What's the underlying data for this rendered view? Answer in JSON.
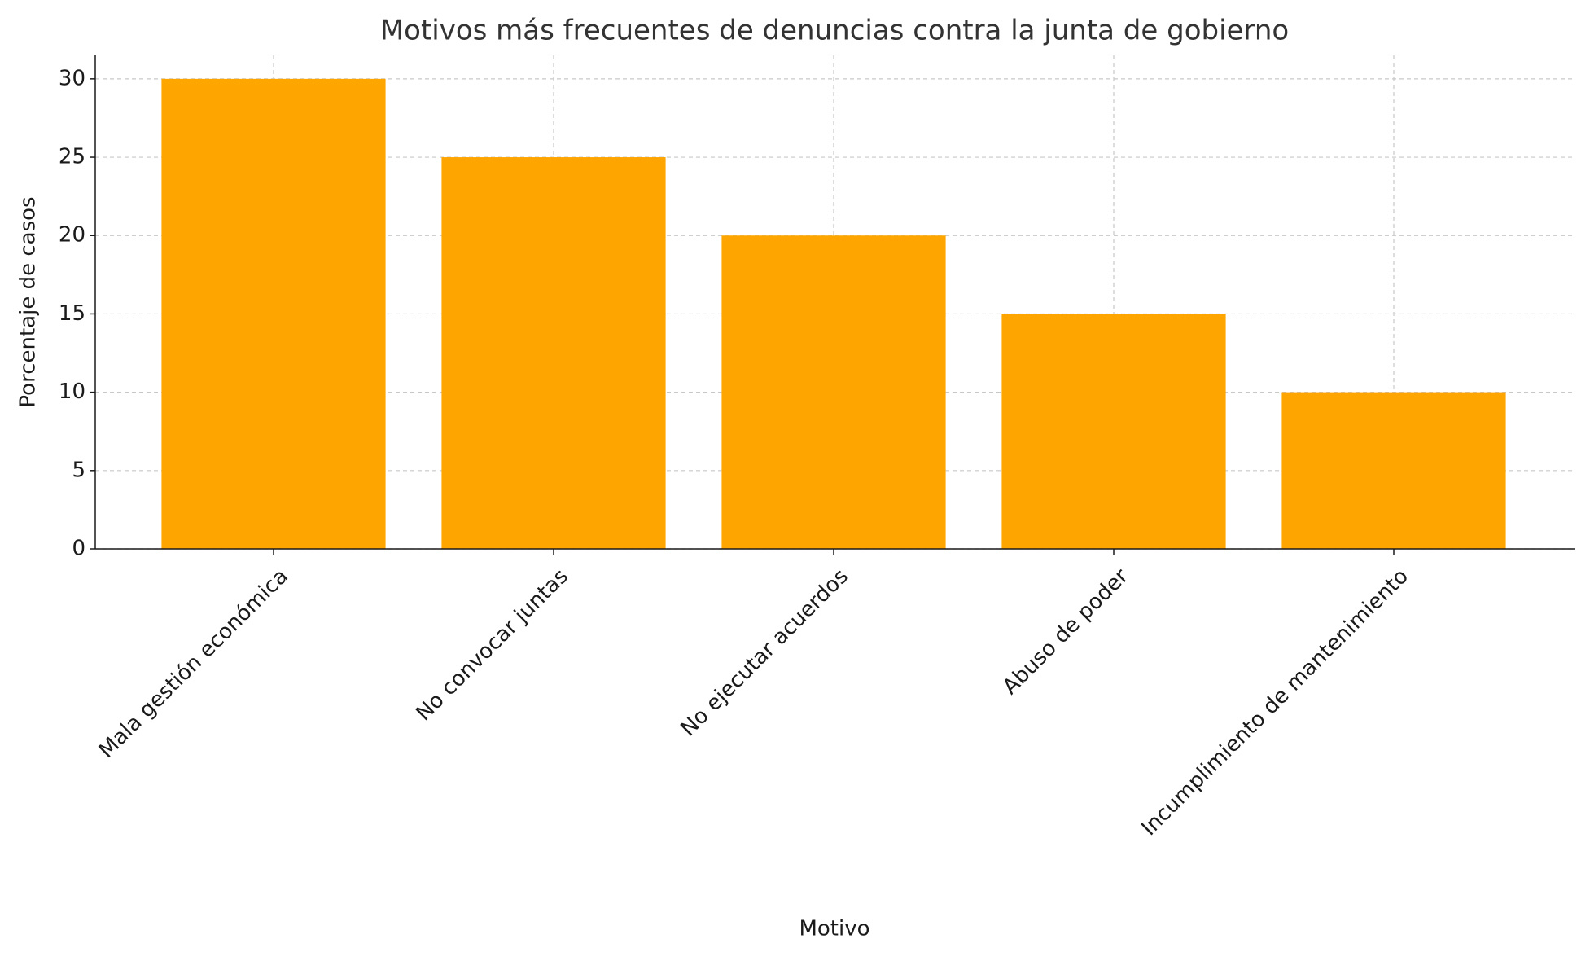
{
  "chart_data": {
    "type": "bar",
    "title": "Motivos más frecuentes de denuncias contra la junta de gobierno",
    "x_label": "Motivo",
    "y_label": "Porcentaje de casos",
    "categories": [
      "Mala gestión económica",
      "No convocar juntas",
      "No ejecutar acuerdos",
      "Abuso de poder",
      "Incumplimiento de mantenimiento"
    ],
    "values": [
      30,
      25,
      20,
      15,
      10
    ],
    "color": "#ffa500",
    "ylim": [
      0,
      31.5
    ],
    "yticks": [
      0,
      5,
      10,
      15,
      20,
      25,
      30
    ],
    "grid": true
  }
}
